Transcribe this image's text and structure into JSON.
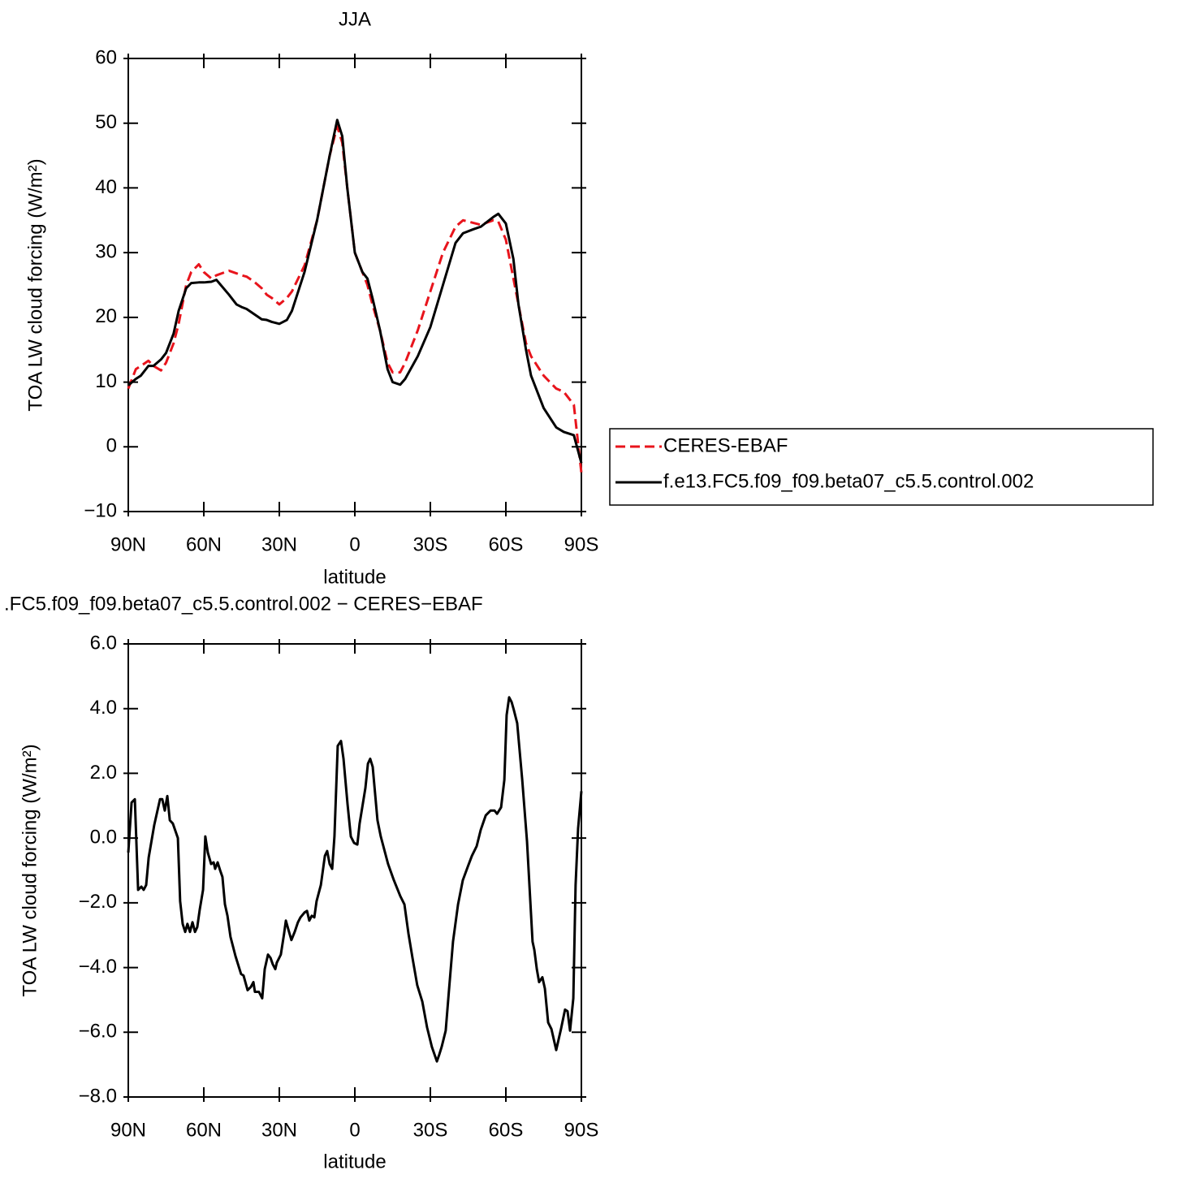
{
  "chart_data": [
    {
      "type": "line",
      "title": "JJA",
      "xlabel": "latitude",
      "ylabel": "TOA LW cloud forcing (W/m²)",
      "xlim": [
        90,
        -90
      ],
      "ylim": [
        -10,
        60
      ],
      "xticks": [
        {
          "value": 90,
          "label": "90N"
        },
        {
          "value": 60,
          "label": "60N"
        },
        {
          "value": 30,
          "label": "30N"
        },
        0,
        {
          "value": -30,
          "label": "30S"
        },
        {
          "value": -60,
          "label": "60S"
        },
        {
          "value": -90,
          "label": "90S"
        }
      ],
      "yticks": [
        {
          "value": -10,
          "label": "−10"
        },
        0,
        10,
        20,
        30,
        40,
        50,
        60
      ],
      "legend": "right",
      "x": [
        90,
        87,
        85,
        82,
        80,
        77,
        75,
        72,
        70,
        67,
        65,
        62,
        60,
        57,
        55,
        50,
        47,
        45,
        43,
        40,
        37,
        35,
        33,
        30,
        27,
        25,
        20,
        15,
        10,
        7,
        5,
        3,
        0,
        -3,
        -5,
        -7,
        -10,
        -13,
        -15,
        -18,
        -20,
        -25,
        -30,
        -35,
        -40,
        -43,
        -47,
        -50,
        -55,
        -57,
        -60,
        -63,
        -65,
        -68,
        -70,
        -75,
        -80,
        -83,
        -87,
        -90
      ],
      "series": [
        {
          "name": "CERES-EBAF",
          "color": "#e8141c",
          "dash": true,
          "values": [
            9,
            12,
            12.5,
            13.3,
            12.5,
            11.8,
            13,
            16,
            19,
            25,
            27,
            28.2,
            27,
            26,
            26.5,
            27.2,
            26.8,
            26.5,
            26.3,
            25.5,
            24.5,
            23.5,
            23,
            22,
            23,
            24,
            28,
            35,
            45,
            49.5,
            47,
            40,
            30,
            27,
            25,
            22,
            18,
            13,
            11.5,
            11.5,
            13,
            18,
            24,
            30,
            34,
            35,
            34.6,
            34.3,
            35,
            34.8,
            32,
            26,
            22,
            16,
            14,
            11,
            9,
            8.5,
            6.5,
            -4
          ]
        },
        {
          "name": "f.e13.FC5.f09_f09.beta07_c5.5.control.002",
          "color": "#000000",
          "dash": false,
          "values": [
            9.5,
            10.5,
            11,
            12.5,
            12.5,
            13.5,
            14.5,
            17.5,
            21,
            24.5,
            25.3,
            25.4,
            25.4,
            25.5,
            25.8,
            23.5,
            22,
            21.6,
            21.3,
            20.5,
            19.7,
            19.6,
            19.3,
            19,
            19.6,
            21,
            27,
            35,
            45,
            50.5,
            48,
            40,
            30,
            27,
            26,
            23,
            18,
            12,
            10,
            9.6,
            10.5,
            14,
            18.5,
            25,
            31.5,
            33,
            33.6,
            34,
            35.5,
            36,
            34.5,
            29,
            22,
            15,
            11,
            6,
            3,
            2.3,
            1.8,
            -2.5
          ]
        }
      ]
    },
    {
      "type": "line",
      "title": ".FC5.f09_f09.beta07_c5.5.control.002 − CERES−EBAF",
      "xlabel": "latitude",
      "ylabel": "TOA LW cloud forcing (W/m²)",
      "xlim": [
        90,
        -90
      ],
      "ylim": [
        -8,
        6
      ],
      "xticks": [
        {
          "value": 90,
          "label": "90N"
        },
        {
          "value": 60,
          "label": "60N"
        },
        {
          "value": 30,
          "label": "30N"
        },
        0,
        {
          "value": -30,
          "label": "30S"
        },
        {
          "value": -60,
          "label": "60S"
        },
        {
          "value": -90,
          "label": "90S"
        }
      ],
      "yticks": [
        {
          "value": -8,
          "label": "−8.0"
        },
        {
          "value": -6,
          "label": "−6.0"
        },
        {
          "value": -4,
          "label": "−4.0"
        },
        {
          "value": -2,
          "label": "−2.0"
        },
        {
          "value": 0,
          "label": "0.0"
        },
        {
          "value": 2,
          "label": "2.0"
        },
        {
          "value": 4,
          "label": "4.0"
        },
        {
          "value": 6,
          "label": "6.0"
        }
      ],
      "x": [
        90,
        88.7,
        87.4,
        86.1,
        84.8,
        83.9,
        82.9,
        81.9,
        79.7,
        77.4,
        76.5,
        75.5,
        74.5,
        73.5,
        72.3,
        70.3,
        69.4,
        68.4,
        67.4,
        66.5,
        65.5,
        64.5,
        63.5,
        62.6,
        61.6,
        60.3,
        59.4,
        58.4,
        57.1,
        56.1,
        55.5,
        54.5,
        53.5,
        52.6,
        51.6,
        50.6,
        49.4,
        47.4,
        45.2,
        44.2,
        42.6,
        41.3,
        40.3,
        39.7,
        38.1,
        36.8,
        35.8,
        34.5,
        33.5,
        32.6,
        31.6,
        31,
        29.4,
        28.1,
        27.4,
        26.5,
        25.2,
        23.9,
        22.6,
        21.6,
        20,
        19,
        18.1,
        17.1,
        16.1,
        15.2,
        13.5,
        11.9,
        11,
        10,
        9,
        8.1,
        6.8,
        5.5,
        4.5,
        2.9,
        1.6,
        0.3,
        -1,
        -1.9,
        -4.2,
        -5.2,
        -6.1,
        -7.1,
        -9,
        -10.3,
        -13.2,
        -15.5,
        -18.1,
        -19.7,
        -21.3,
        -22.9,
        -24.8,
        -26.8,
        -28.7,
        -30.6,
        -32.6,
        -33.5,
        -34.5,
        -36.1,
        -37.4,
        -39,
        -41,
        -42.9,
        -44.8,
        -46.5,
        -48.4,
        -50,
        -52,
        -53.9,
        -55.5,
        -56.5,
        -58.1,
        -59.4,
        -60.3,
        -61.3,
        -62.3,
        -63.2,
        -64.5,
        -66.5,
        -68.4,
        -70.6,
        -71.3,
        -72.3,
        -73.2,
        -74.5,
        -75.5,
        -76.8,
        -78.1,
        -80,
        -81.9,
        -83.5,
        -84.5,
        -85.5,
        -86.8,
        -87.7,
        -88.7,
        -90
      ],
      "series": [
        {
          "color": "#000000",
          "dash": false,
          "values": [
            -0.45,
            1.1,
            1.2,
            -1.6,
            -1.5,
            -1.6,
            -1.45,
            -0.6,
            0.4,
            1.2,
            1.2,
            0.85,
            1.3,
            0.55,
            0.45,
            0,
            -1.95,
            -2.65,
            -2.9,
            -2.65,
            -2.9,
            -2.6,
            -2.9,
            -2.75,
            -2.2,
            -1.6,
            0.05,
            -0.45,
            -0.8,
            -0.75,
            -0.95,
            -0.75,
            -1,
            -1.2,
            -2.05,
            -2.4,
            -3.05,
            -3.65,
            -4.2,
            -4.25,
            -4.7,
            -4.6,
            -4.45,
            -4.75,
            -4.75,
            -4.95,
            -4.05,
            -3.6,
            -3.7,
            -3.9,
            -4.05,
            -3.85,
            -3.6,
            -2.95,
            -2.55,
            -2.8,
            -3.15,
            -2.9,
            -2.6,
            -2.45,
            -2.3,
            -2.25,
            -2.55,
            -2.4,
            -2.45,
            -1.95,
            -1.45,
            -0.55,
            -0.4,
            -0.8,
            -0.95,
            0.05,
            2.85,
            3,
            2.45,
            1.05,
            0.05,
            -0.15,
            -0.2,
            0.45,
            1.55,
            2.3,
            2.45,
            2.2,
            0.55,
            0.05,
            -0.8,
            -1.3,
            -1.8,
            -2.05,
            -2.95,
            -3.7,
            -4.55,
            -5.05,
            -5.85,
            -6.45,
            -6.9,
            -6.7,
            -6.45,
            -5.95,
            -4.7,
            -3.2,
            -2.05,
            -1.3,
            -0.9,
            -0.55,
            -0.25,
            0.25,
            0.7,
            0.85,
            0.85,
            0.75,
            0.95,
            1.8,
            3.8,
            4.35,
            4.2,
            3.95,
            3.55,
            1.8,
            -0.1,
            -3.2,
            -3.45,
            -4.05,
            -4.45,
            -4.3,
            -4.65,
            -5.7,
            -5.9,
            -6.55,
            -5.9,
            -5.3,
            -5.35,
            -5.95,
            -4.95,
            -1.45,
            0.3,
            1.45
          ]
        }
      ]
    }
  ]
}
